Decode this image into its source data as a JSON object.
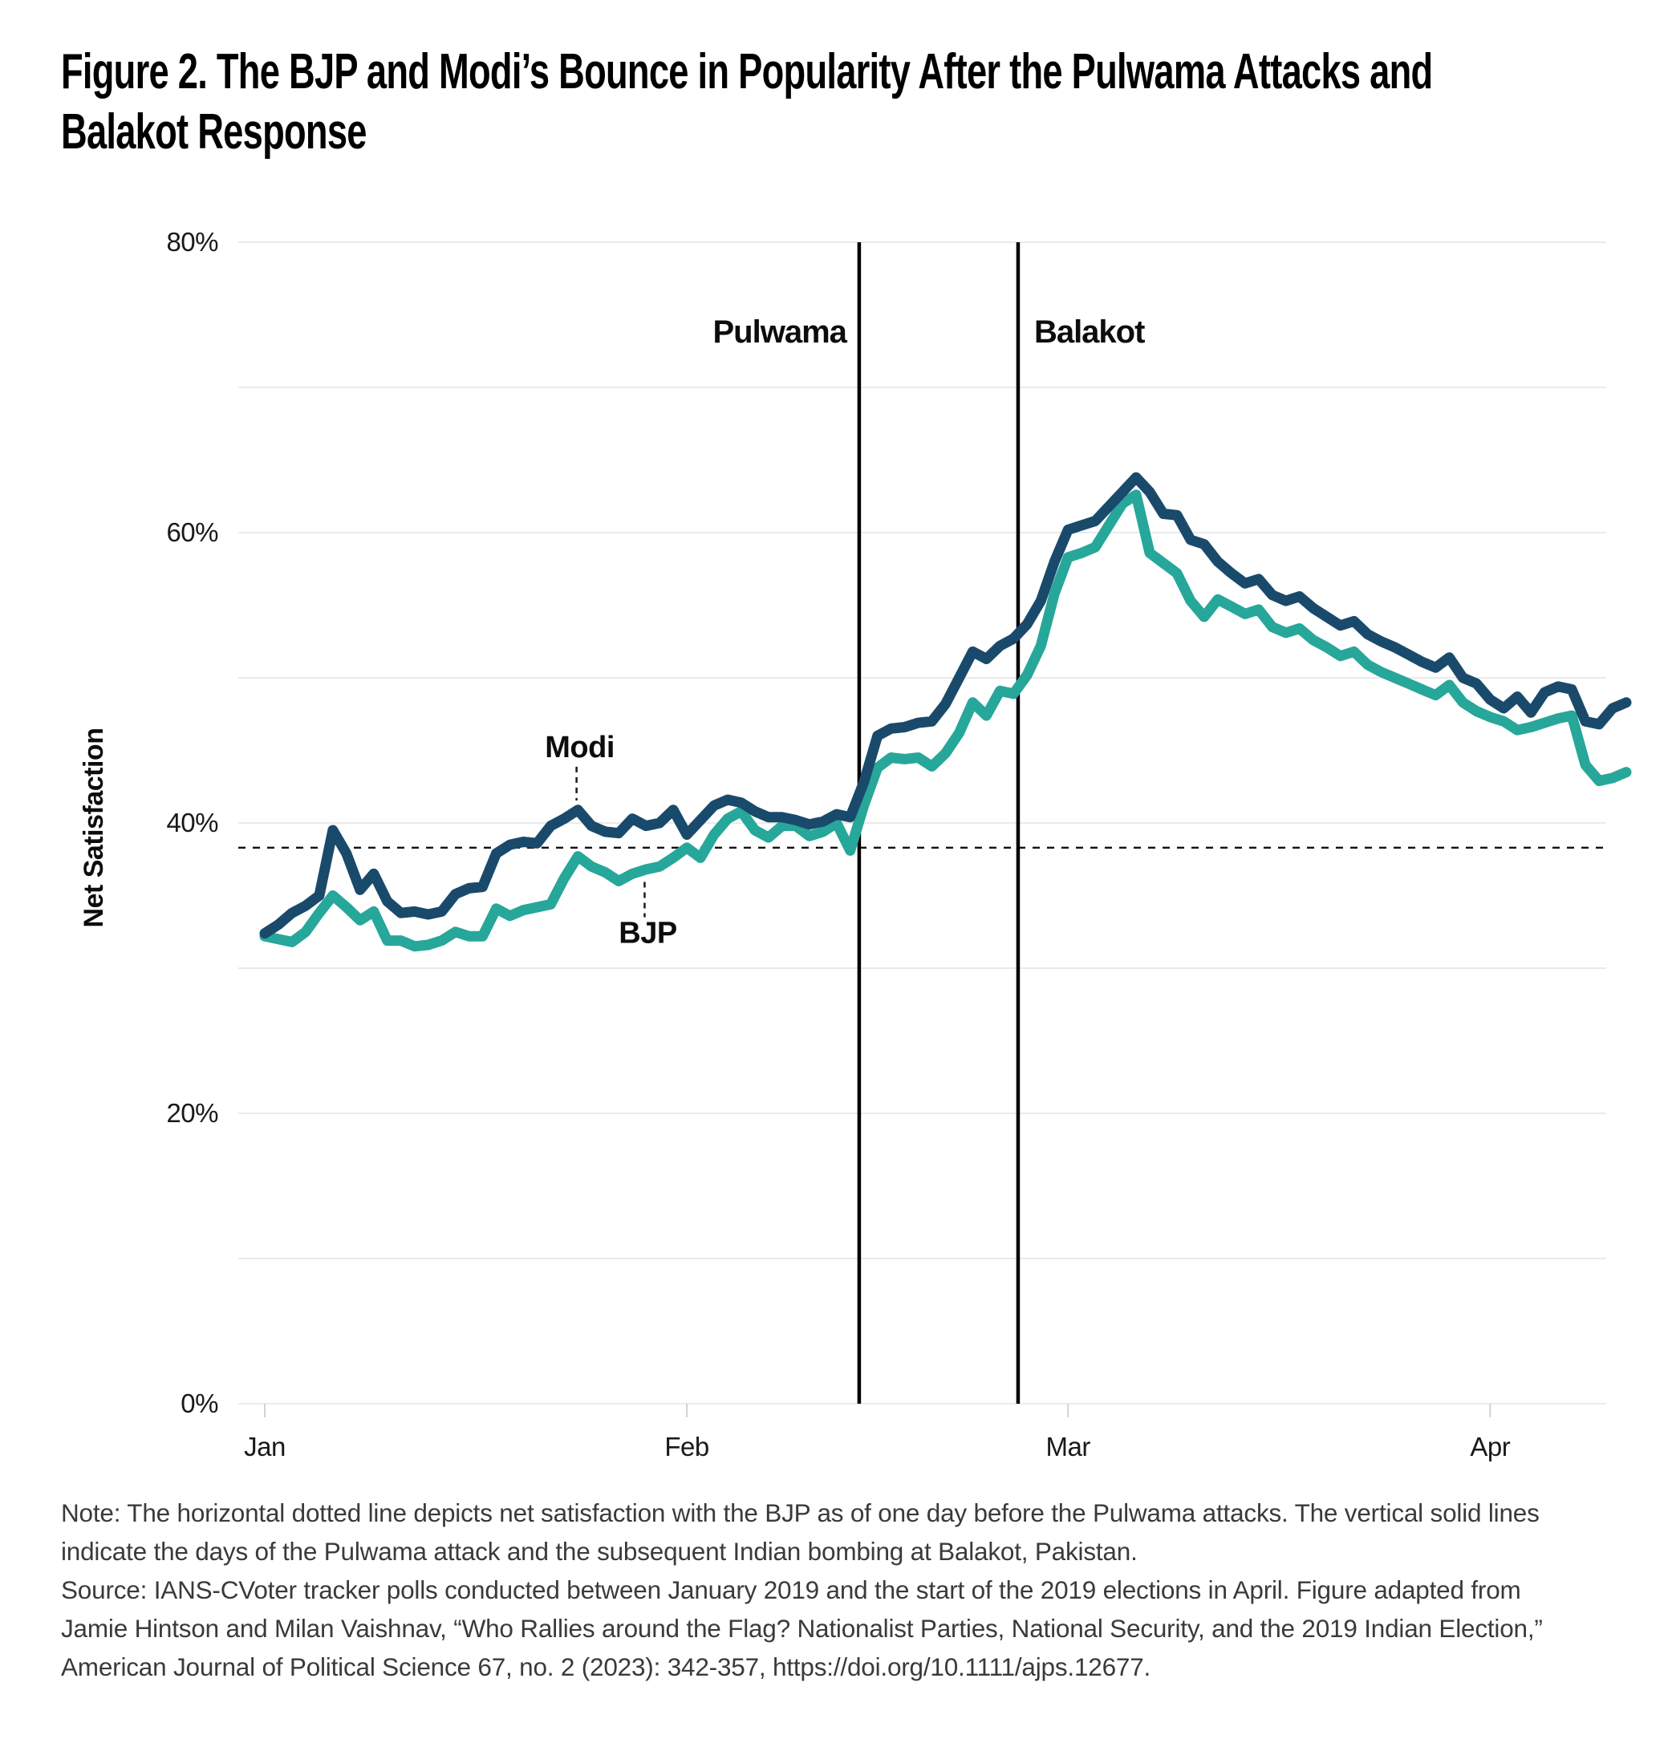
{
  "title": {
    "line1": "Figure 2. The BJP and Modi’s Bounce in Popularity After the Pulwama Attacks and",
    "line2": "Balakot Response"
  },
  "chart_data": {
    "type": "line",
    "title": "The BJP and Modi's Bounce in Popularity After the Pulwama Attacks and Balakot Response",
    "xlabel": "",
    "ylabel": "Net Satisfaction",
    "x_unit": "days since Jan 1, 2019 (daily tracker polls)",
    "ylim": [
      0,
      80
    ],
    "grid": "horizontal gridlines every 10%",
    "legend_position": "inline annotations on lines",
    "y_ticks": [
      {
        "value": 80,
        "label": "80%"
      },
      {
        "value": 60,
        "label": "60%"
      },
      {
        "value": 40,
        "label": "40%"
      },
      {
        "value": 20,
        "label": "20%"
      },
      {
        "value": 0,
        "label": "0%"
      }
    ],
    "x_ticks": [
      {
        "day": 0,
        "label": "Jan"
      },
      {
        "day": 31,
        "label": "Feb"
      },
      {
        "day": 59,
        "label": "Mar"
      },
      {
        "day": 90,
        "label": "Apr"
      }
    ],
    "baseline": {
      "value": 38.3,
      "style": "dotted",
      "meaning": "net satisfaction with the BJP one day before the Pulwama attacks",
      "color": "#111111"
    },
    "events": [
      {
        "label": "Pulwama",
        "day": 43.66,
        "side": "left"
      },
      {
        "label": "Balakot",
        "day": 55.33,
        "side": "right"
      }
    ],
    "annotations": [
      {
        "text": "Modi",
        "day": 22.9,
        "value": 41.0,
        "side": "above"
      },
      {
        "text": "BJP",
        "day": 27.9,
        "value": 36.6,
        "side": "below"
      }
    ],
    "series": [
      {
        "name": "Modi",
        "color": "#1A4A6B",
        "values": [
          32.4,
          33.0,
          33.8,
          34.3,
          35.0,
          39.5,
          37.9,
          35.4,
          36.5,
          34.6,
          33.8,
          33.9,
          33.7,
          33.9,
          35.1,
          35.5,
          35.6,
          37.9,
          38.5,
          38.7,
          38.6,
          39.8,
          40.3,
          40.9,
          39.8,
          39.4,
          39.3,
          40.3,
          39.8,
          40.0,
          40.9,
          39.2,
          40.2,
          41.2,
          41.6,
          41.4,
          40.8,
          40.4,
          40.4,
          40.2,
          39.9,
          40.1,
          40.6,
          40.4,
          42.8,
          46.0,
          46.5,
          46.6,
          46.9,
          47.0,
          48.2,
          50.0,
          51.8,
          51.3,
          52.2,
          52.7,
          53.7,
          55.3,
          58.0,
          60.2,
          60.5,
          60.8,
          61.8,
          62.8,
          63.8,
          62.8,
          61.3,
          61.2,
          59.5,
          59.2,
          58.0,
          57.2,
          56.5,
          56.8,
          55.7,
          55.3,
          55.6,
          54.8,
          54.2,
          53.6,
          53.9,
          53.0,
          52.5,
          52.1,
          51.6,
          51.1,
          50.7,
          51.4,
          50.0,
          49.6,
          48.5,
          47.9,
          48.7,
          47.6,
          49.0,
          49.4,
          49.2,
          47.0,
          46.8,
          47.9,
          48.3
        ]
      },
      {
        "name": "BJP",
        "color": "#26A79A",
        "values": [
          32.2,
          32.0,
          31.8,
          32.5,
          33.8,
          35.0,
          34.2,
          33.3,
          33.9,
          31.9,
          31.9,
          31.5,
          31.6,
          31.9,
          32.5,
          32.2,
          32.2,
          34.1,
          33.6,
          34.0,
          34.2,
          34.4,
          36.2,
          37.7,
          37.0,
          36.6,
          36.0,
          36.5,
          36.8,
          37.0,
          37.6,
          38.3,
          37.6,
          39.2,
          40.3,
          40.8,
          39.5,
          39.0,
          39.8,
          39.8,
          39.1,
          39.4,
          40.0,
          38.1,
          41.2,
          43.8,
          44.5,
          44.4,
          44.5,
          43.9,
          44.8,
          46.2,
          48.3,
          47.4,
          49.1,
          48.9,
          50.2,
          52.2,
          55.8,
          58.3,
          58.6,
          59.0,
          60.5,
          62.0,
          62.6,
          58.6,
          57.9,
          57.2,
          55.3,
          54.2,
          55.4,
          54.9,
          54.4,
          54.7,
          53.5,
          53.1,
          53.4,
          52.6,
          52.1,
          51.5,
          51.8,
          50.9,
          50.4,
          50.0,
          49.6,
          49.2,
          48.8,
          49.5,
          48.3,
          47.7,
          47.3,
          47.0,
          46.4,
          46.6,
          46.9,
          47.2,
          47.4,
          44.0,
          42.9,
          43.1,
          43.5
        ]
      }
    ]
  },
  "notes": {
    "note": "Note: The horizontal dotted line depicts net satisfaction with the BJP as of one day before the Pulwama attacks. The vertical solid lines indicate the days of the Pulwama attack and the subsequent Indian bombing at Balakot, Pakistan.",
    "source": "Source: IANS-CVoter tracker polls conducted between January 2019 and the start of the 2019 elections in April. Figure adapted from Jamie Hintson and Milan Vaishnav, “Who Rallies around the Flag? Nationalist Parties, National Security, and the 2019 Indian Election,” American Journal of Political Science 67, no. 2 (2023): 342-357, https://doi.org/10.1111/ajps.12677."
  }
}
